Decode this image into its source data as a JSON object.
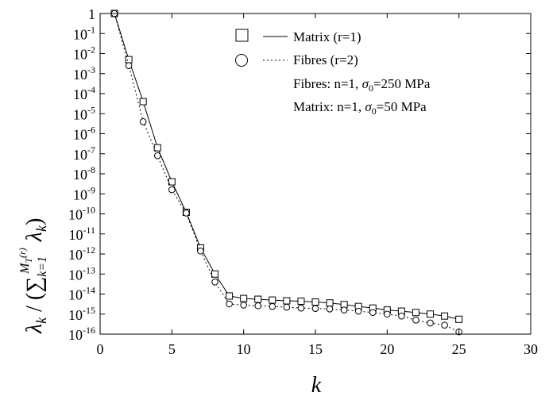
{
  "chart_data": {
    "type": "line",
    "xlabel": "k",
    "ylabel": {
      "lambda": "λ",
      "sub_k": "k",
      "slash": " / (",
      "sum": "∑",
      "sum_lower": "k=1",
      "sum_upper_M": "M",
      "sum_upper_T": "T",
      "sum_upper_r": "(r)",
      "close": ")"
    },
    "xlim": [
      0,
      30
    ],
    "ylim_log10": [
      -16,
      0
    ],
    "y_scale": "log",
    "xticks": [
      0,
      5,
      10,
      15,
      20,
      25,
      30
    ],
    "xtick_labels": [
      "0",
      "5",
      "10",
      "15",
      "20",
      "25",
      "30"
    ],
    "yticks": [
      {
        "base": "1",
        "exp": ""
      },
      {
        "base": "10",
        "exp": "-1"
      },
      {
        "base": "10",
        "exp": "-2"
      },
      {
        "base": "10",
        "exp": "-3"
      },
      {
        "base": "10",
        "exp": "-4"
      },
      {
        "base": "10",
        "exp": "-5"
      },
      {
        "base": "10",
        "exp": "-6"
      },
      {
        "base": "10",
        "exp": "-7"
      },
      {
        "base": "10",
        "exp": "-8"
      },
      {
        "base": "10",
        "exp": "-9"
      },
      {
        "base": "10",
        "exp": "-10"
      },
      {
        "base": "10",
        "exp": "-11"
      },
      {
        "base": "10",
        "exp": "-12"
      },
      {
        "base": "10",
        "exp": "-13"
      },
      {
        "base": "10",
        "exp": "-14"
      },
      {
        "base": "10",
        "exp": "-15"
      },
      {
        "base": "10",
        "exp": "-16"
      }
    ],
    "legend_position": "top-right",
    "series": [
      {
        "name": "Matrix (r=1)",
        "marker": "square",
        "line": "solid",
        "x": [
          1,
          2,
          3,
          4,
          5,
          6,
          7,
          8,
          9,
          10,
          11,
          12,
          13,
          14,
          15,
          16,
          17,
          18,
          19,
          20,
          21,
          22,
          23,
          24,
          25
        ],
        "y": [
          1,
          0.005,
          4e-05,
          2e-07,
          4e-09,
          1.2e-10,
          2e-12,
          1e-13,
          8e-15,
          6e-15,
          5.5e-15,
          5e-15,
          4.6e-15,
          4.4e-15,
          4e-15,
          3.6e-15,
          3e-15,
          2.4e-15,
          2e-15,
          1.6e-15,
          1.4e-15,
          1.2e-15,
          1e-15,
          8e-16,
          5.5e-16
        ]
      },
      {
        "name": "Fibres (r=2)",
        "marker": "circle",
        "line": "dotted",
        "x": [
          1,
          2,
          3,
          4,
          5,
          6,
          7,
          8,
          9,
          10,
          11,
          12,
          13,
          14,
          15,
          16,
          17,
          18,
          19,
          20,
          21,
          22,
          23,
          24,
          25
        ],
        "y": [
          1,
          0.0025,
          4e-06,
          8e-08,
          1.6e-09,
          1.1e-10,
          1.4e-12,
          4e-14,
          3.2e-15,
          2.8e-15,
          2.6e-15,
          2.4e-15,
          2.2e-15,
          2e-15,
          1.9e-15,
          1.8e-15,
          1.6e-15,
          1.4e-15,
          1.2e-15,
          1e-15,
          8e-16,
          5e-16,
          3.6e-16,
          2.8e-16,
          1.3e-16
        ]
      }
    ],
    "annotations": [
      {
        "prefix": "Fibres: n=1, ",
        "sigma": "σ",
        "sub": "0",
        "suffix": "=250 MPa"
      },
      {
        "prefix": "Matrix: n=1, ",
        "sigma": "σ",
        "sub": "0",
        "suffix": "=50 MPa"
      }
    ]
  }
}
